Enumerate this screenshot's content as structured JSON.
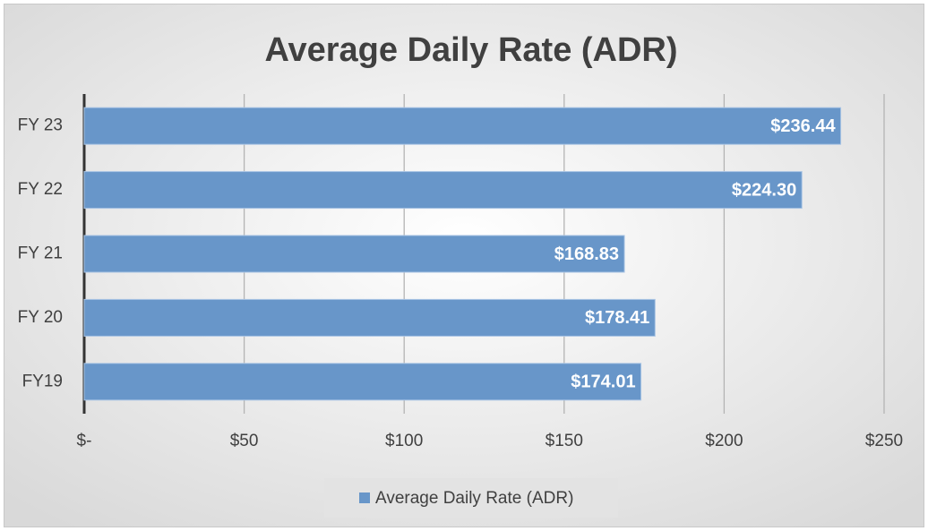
{
  "chart_data": {
    "type": "hbar",
    "title": "Average Daily Rate (ADR)",
    "categories": [
      "FY 23",
      "FY 22",
      "FY 21",
      "FY 20",
      "FY19"
    ],
    "series": [
      {
        "name": "Average Daily Rate (ADR)",
        "color": "#6896c9",
        "values": [
          236.44,
          224.3,
          168.83,
          178.41,
          174.01
        ],
        "value_labels": [
          "$236.44",
          "$224.30",
          "$168.83",
          "$178.41",
          "$174.01"
        ]
      }
    ],
    "xlim": [
      0,
      250
    ],
    "xticks": [
      {
        "value": 0,
        "label": "$-"
      },
      {
        "value": 50,
        "label": "$50"
      },
      {
        "value": 100,
        "label": "$100"
      },
      {
        "value": 150,
        "label": "$150"
      },
      {
        "value": 200,
        "label": "$200"
      },
      {
        "value": 250,
        "label": "$250"
      }
    ],
    "grid": true,
    "legend": "bottom"
  }
}
